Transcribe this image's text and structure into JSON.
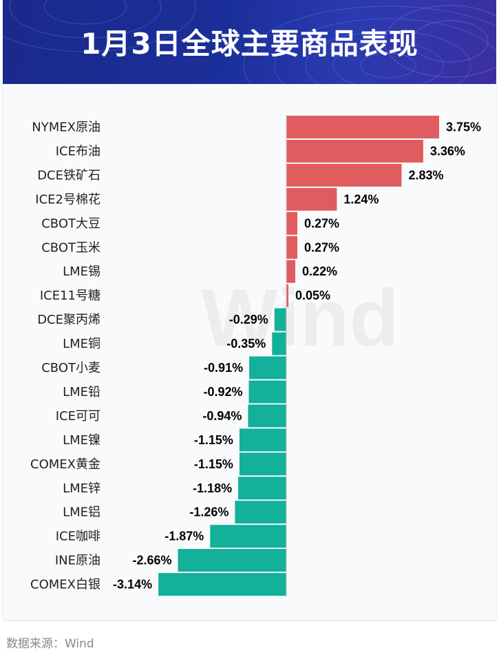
{
  "header": {
    "title": "1月3日全球主要商品表现"
  },
  "footer": {
    "source": "数据来源：Wind"
  },
  "watermark": "Wind",
  "colors": {
    "positive": "#e05c5f",
    "negative": "#13b09a",
    "header_bg": "#1b2f9a"
  },
  "chart_data": {
    "type": "bar",
    "orientation": "horizontal",
    "title": "1月3日全球主要商品表现",
    "unit": "%",
    "categories": [
      "NYMEX原油",
      "ICE布油",
      "DCE铁矿石",
      "ICE2号棉花",
      "CBOT大豆",
      "CBOT玉米",
      "LME锡",
      "ICE11号糖",
      "DCE聚丙烯",
      "LME铜",
      "CBOT小麦",
      "LME铅",
      "ICE可可",
      "LME镍",
      "COMEX黄金",
      "LME锌",
      "LME铝",
      "ICE咖啡",
      "INE原油",
      "COMEX白银"
    ],
    "values": [
      3.75,
      3.36,
      2.83,
      1.24,
      0.27,
      0.27,
      0.22,
      0.05,
      -0.29,
      -0.35,
      -0.91,
      -0.92,
      -0.94,
      -1.15,
      -1.15,
      -1.18,
      -1.26,
      -1.87,
      -2.66,
      -3.14
    ],
    "labels": [
      "3.75%",
      "3.36%",
      "2.83%",
      "1.24%",
      "0.27%",
      "0.27%",
      "0.22%",
      "0.05%",
      "-0.29%",
      "-0.35%",
      "-0.91%",
      "-0.92%",
      "-0.94%",
      "-1.15%",
      "-1.15%",
      "-1.18%",
      "-1.26%",
      "-1.87%",
      "-2.66%",
      "-3.14%"
    ],
    "xlim": [
      -3.14,
      3.75
    ],
    "grid": false,
    "legend": "none"
  }
}
